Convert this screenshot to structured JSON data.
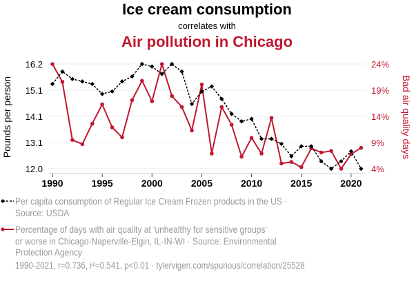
{
  "colors": {
    "series_ice_cream": "#000000",
    "series_air_pollution": "#c0182f",
    "legend_text": "#9a9a9a",
    "grid": "#eeeeee",
    "axis": "#cccccc"
  },
  "chart_data": {
    "type": "line",
    "title": "Ice cream consumption",
    "subtitle": "correlates with",
    "title_second": "Air pollution in Chicago",
    "xlabel": "",
    "x": [
      1990,
      1991,
      1992,
      1993,
      1994,
      1995,
      1996,
      1997,
      1998,
      1999,
      2000,
      2001,
      2002,
      2003,
      2004,
      2005,
      2006,
      2007,
      2008,
      2009,
      2010,
      2011,
      2012,
      2013,
      2014,
      2015,
      2016,
      2017,
      2018,
      2019,
      2020,
      2021
    ],
    "xticks": [
      1990,
      1995,
      2000,
      2005,
      2010,
      2015,
      2020
    ],
    "xlim": [
      1990,
      2021
    ],
    "y_left": {
      "label": "Pounds per person",
      "range": [
        12.0,
        16.2
      ],
      "ticks": [
        "12.0",
        "13.1",
        "14.1",
        "15.1",
        "16.2"
      ]
    },
    "y_right": {
      "label": "Bad air quality days",
      "range": [
        4,
        24
      ],
      "ticks": [
        "4%",
        "9%",
        "14%",
        "19%",
        "24%"
      ]
    },
    "grid": true,
    "legend_position": "bottom",
    "series": [
      {
        "name": "Per capita consumption of Regular Ice Cream Frozen products in the US",
        "axis": "left",
        "unit": "pounds per person",
        "style": "dashed",
        "marker": "diamond",
        "color": "#000000",
        "values": [
          15.4,
          15.9,
          15.6,
          15.5,
          15.4,
          15.0,
          15.1,
          15.5,
          15.7,
          16.2,
          16.1,
          15.8,
          16.2,
          15.9,
          14.6,
          15.1,
          15.3,
          14.8,
          14.2,
          13.9,
          14.0,
          13.2,
          13.2,
          13.0,
          12.5,
          12.9,
          12.9,
          12.3,
          12.0,
          12.3,
          12.7,
          12.0
        ]
      },
      {
        "name": "Percentage of days with air quality at 'unhealthy for sensitive groups' or worse in Chicago-Naperville-Elgin, IL-IN-WI",
        "axis": "right",
        "unit": "percent",
        "style": "solid",
        "marker": "circle",
        "color": "#c0182f",
        "values": [
          24.0,
          20.6,
          9.5,
          8.7,
          12.6,
          16.3,
          11.9,
          10.0,
          17.1,
          20.8,
          16.9,
          24.0,
          17.9,
          15.8,
          11.3,
          20.1,
          6.9,
          15.8,
          12.4,
          6.3,
          9.9,
          6.9,
          13.7,
          5.0,
          5.3,
          4.3,
          7.9,
          7.1,
          7.4,
          4.0,
          6.8,
          8.0
        ]
      }
    ]
  },
  "legend": {
    "items": [
      {
        "lines": [
          "Per capita consumption of Regular Ice Cream Frozen products in the US ·",
          "Source: USDA"
        ]
      },
      {
        "lines": [
          "Percentage of days with air quality at 'unhealthy for sensitive groups'",
          "or worse in Chicago-Naperville-Elgin, IL-IN-WI · Source: Environmental",
          "Protection Agency"
        ]
      }
    ]
  },
  "footer": "1990-2021, r=0.736, r²=0.541, p<0.01 · tylervigen.com/spurious/correlation/25528"
}
